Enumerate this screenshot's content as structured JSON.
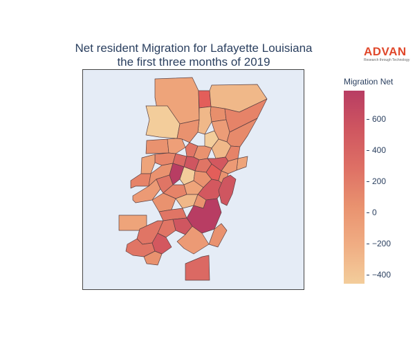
{
  "title": {
    "line1": "Net resident Migration for Lafayette Louisiana",
    "line2": "the first three months of 2019"
  },
  "logo": {
    "word": "ADVAN",
    "tagline": "Research through Technology",
    "color": "#e0482b"
  },
  "colorbar": {
    "title": "Migration Net",
    "range": [
      -460,
      780
    ],
    "colors": [
      "#f3cd9b",
      "#f0ad83",
      "#e9926f",
      "#de7065",
      "#cf5660",
      "#b83d63"
    ],
    "ticks": [
      {
        "value": 600,
        "label": "600"
      },
      {
        "value": 400,
        "label": "400"
      },
      {
        "value": 200,
        "label": "200"
      },
      {
        "value": 0,
        "label": "0"
      },
      {
        "value": -200,
        "label": "−200"
      },
      {
        "value": -400,
        "label": "−400"
      }
    ]
  },
  "map": {
    "background": "#e5ecf6",
    "border_color": "#444444",
    "region_stroke": "#5a4042"
  }
}
